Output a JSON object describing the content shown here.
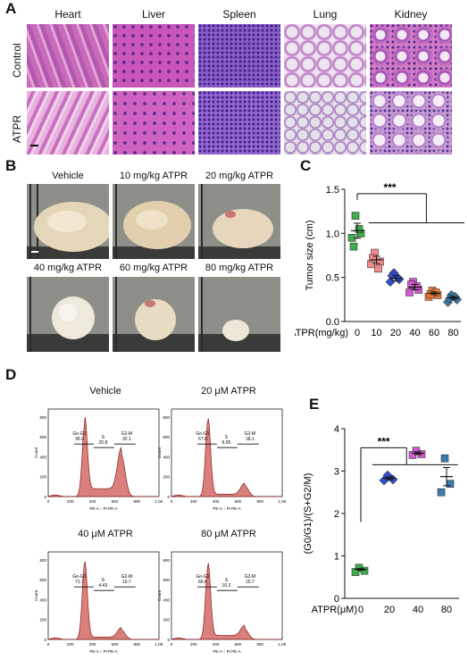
{
  "panels": {
    "a": "A",
    "b": "B",
    "c": "C",
    "d": "D",
    "e": "E"
  },
  "panelA": {
    "tissues": [
      "Heart",
      "Liver",
      "Spleen",
      "Lung",
      "Kidney"
    ],
    "rows": [
      "Control",
      "ATPR"
    ],
    "colors": {
      "stain_pink": "#d77fc2",
      "stain_purple": "#6a2c96",
      "lung_bg": "#e8e4ea"
    }
  },
  "panelB": {
    "labels": [
      "Vehicle",
      "10 mg/kg ATPR",
      "20 mg/kg ATPR",
      "40 mg/kg ATPR",
      "60 mg/kg ATPR",
      "80 mg/kg ATPR"
    ]
  },
  "panelC": {
    "significance": "***",
    "xaxis_label": "ATPR(mg/kg)",
    "chart_data": {
      "type": "scatter",
      "ylabel": "Tumor size (cm)",
      "xlabel": "ATPR(mg/kg)",
      "categories": [
        "0",
        "10",
        "20",
        "40",
        "60",
        "80"
      ],
      "ylim": [
        0,
        1.5
      ],
      "yticks": [
        "0.0",
        "0.5",
        "1.0",
        "1.5"
      ],
      "means": [
        1.03,
        0.7,
        0.49,
        0.39,
        0.32,
        0.27
      ],
      "points": [
        [
          1.2,
          1.0,
          0.95,
          1.05,
          0.85
        ],
        [
          0.78,
          0.68,
          0.65,
          0.6,
          0.72
        ],
        [
          0.55,
          0.48,
          0.45,
          0.5,
          0.52
        ],
        [
          0.45,
          0.36,
          0.33,
          0.4,
          0.42
        ],
        [
          0.35,
          0.3,
          0.28,
          0.33,
          0.31
        ],
        [
          0.3,
          0.25,
          0.22,
          0.28,
          0.26
        ]
      ],
      "markers": [
        "square",
        "square",
        "diamond",
        "square",
        "square",
        "diamond"
      ],
      "colors": [
        "#3fae49",
        "#f28b8b",
        "#2f4fd3",
        "#d45ad0",
        "#f07b32",
        "#3a7dab"
      ]
    }
  },
  "panelD": {
    "histograms": [
      {
        "title": "Vehicle",
        "g1_label": "Go-G1",
        "g1_value": "36.9",
        "s_label": "S",
        "s_value": "20.8",
        "g2_label": "G2-M",
        "g2_value": "32.1"
      },
      {
        "title": "20 μM ATPR",
        "g1_label": "Go-G1",
        "g1_value": "67.8",
        "s_label": "S",
        "s_value": "6.05",
        "g2_label": "G2-M",
        "g2_value": "18.1"
      },
      {
        "title": "40 μM ATPR",
        "g1_label": "Go-G1",
        "g1_value": "71.7",
        "s_label": "S",
        "s_value": "4.43",
        "g2_label": "G2-M",
        "g2_value": "16.7"
      },
      {
        "title": "80 μM ATPR",
        "g1_label": "Go-G1",
        "g1_value": "66.6",
        "s_label": "S",
        "s_value": "10.3",
        "g2_label": "G2-M",
        "g2_value": "15.7"
      }
    ],
    "ylabel": "Count",
    "xlabel": "PE-A :: PI PE-A",
    "yticks": [
      "0",
      "200",
      "400",
      "600",
      "800"
    ],
    "xticks": [
      "0",
      "200",
      "400",
      "600",
      "800",
      "1.0K"
    ],
    "fill_color": "#d9807c"
  },
  "panelE": {
    "significance": "***",
    "xaxis_label": "ATPR(μM)",
    "chart_data": {
      "type": "scatter",
      "ylabel": "(G0/G1)/(S+G2/M)",
      "categories": [
        "0",
        "20",
        "40",
        "80"
      ],
      "ylim": [
        0,
        4
      ],
      "yticks": [
        "0",
        "1",
        "2",
        "3",
        "4"
      ],
      "means": [
        0.68,
        2.83,
        3.42,
        2.87
      ],
      "points": [
        [
          0.72,
          0.65,
          0.62
        ],
        [
          2.9,
          2.8,
          2.78
        ],
        [
          3.48,
          3.4,
          3.38
        ],
        [
          3.3,
          2.7,
          2.5
        ]
      ],
      "markers": [
        "square",
        "diamond",
        "square",
        "square"
      ],
      "colors": [
        "#3fae49",
        "#2f4fd3",
        "#d45ad0",
        "#3a7dab"
      ]
    }
  }
}
